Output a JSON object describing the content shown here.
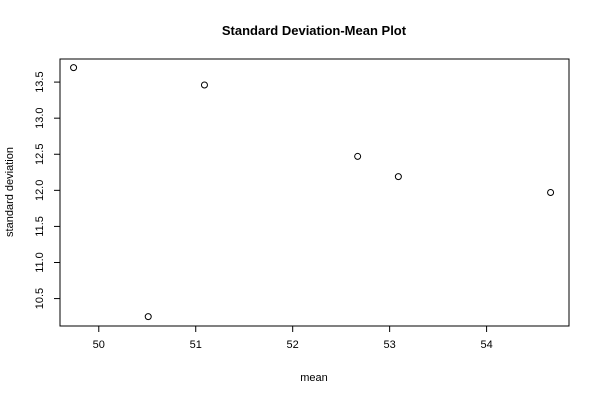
{
  "chart_data": {
    "type": "scatter",
    "title": "Standard Deviation-Mean Plot",
    "xlabel": "mean",
    "ylabel": "standard deviation",
    "xlim": [
      49.6,
      54.85
    ],
    "ylim": [
      10.12,
      13.82
    ],
    "xticks": [
      50,
      51,
      52,
      53,
      54
    ],
    "yticks": [
      10.5,
      11.0,
      11.5,
      12.0,
      12.5,
      13.0,
      13.5
    ],
    "grid": false,
    "points": [
      {
        "x": 49.74,
        "y": 13.7
      },
      {
        "x": 50.51,
        "y": 10.25
      },
      {
        "x": 51.09,
        "y": 13.46
      },
      {
        "x": 52.67,
        "y": 12.47
      },
      {
        "x": 53.09,
        "y": 12.19
      },
      {
        "x": 54.66,
        "y": 11.97
      }
    ]
  }
}
